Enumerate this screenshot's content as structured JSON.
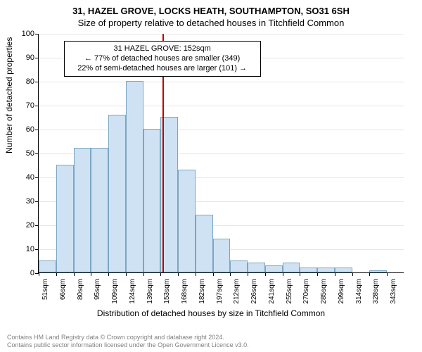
{
  "title_main": "31, HAZEL GROVE, LOCKS HEATH, SOUTHAMPTON, SO31 6SH",
  "title_sub": "Size of property relative to detached houses in Titchfield Common",
  "chart": {
    "type": "histogram",
    "y_label": "Number of detached properties",
    "x_label": "Distribution of detached houses by size in Titchfield Common",
    "ylim": [
      0,
      100
    ],
    "ytick_step": 10,
    "bar_fill": "#cfe2f3",
    "bar_border": "#7aa6c2",
    "grid_color": "#e6e6e6",
    "background_color": "#ffffff",
    "axis_color": "#000000",
    "marker_value_x": 152,
    "marker_color": "#c00000",
    "x_range": [
      51,
      350
    ],
    "bin_width_sqm": 14.6,
    "categories": [
      "51sqm",
      "66sqm",
      "80sqm",
      "95sqm",
      "109sqm",
      "124sqm",
      "139sqm",
      "153sqm",
      "168sqm",
      "182sqm",
      "197sqm",
      "212sqm",
      "226sqm",
      "241sqm",
      "255sqm",
      "270sqm",
      "285sqm",
      "299sqm",
      "314sqm",
      "328sqm",
      "343sqm"
    ],
    "values": [
      5,
      45,
      52,
      52,
      66,
      80,
      60,
      65,
      43,
      24,
      14,
      5,
      4,
      3,
      4,
      2,
      2,
      2,
      0,
      1,
      0
    ],
    "annot": {
      "line1": "31 HAZEL GROVE: 152sqm",
      "line2": "← 77% of detached houses are smaller (349)",
      "line3": "22% of semi-detached houses are larger (101) →"
    },
    "fontsize_title": 13,
    "fontsize_axis_label": 12,
    "fontsize_tick": 10,
    "fontsize_annot": 11
  },
  "footer": {
    "line1": "Contains HM Land Registry data © Crown copyright and database right 2024.",
    "line2": "Contains public sector information licensed under the Open Government Licence v3.0."
  }
}
